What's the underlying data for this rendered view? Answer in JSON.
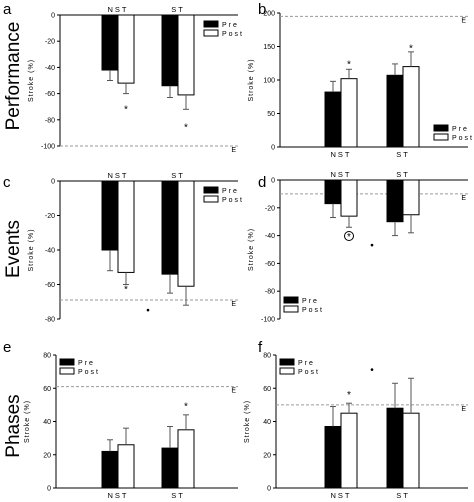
{
  "row_labels": [
    "Performance",
    "Events",
    "Phases"
  ],
  "chart_data": [
    {
      "id": "a",
      "type": "bar",
      "letter": "a",
      "ylabel": "Stroke (%)",
      "ylim": [
        -100,
        0
      ],
      "yticks": [
        0,
        -20,
        -40,
        -60,
        -80,
        -100
      ],
      "yticklabels": [
        "0",
        "-20",
        "-40",
        "-60",
        "-80",
        "-100"
      ],
      "categories": [
        "NST",
        "ST"
      ],
      "category_position": "top",
      "series": [
        {
          "name": "Pre",
          "color": "#000000",
          "values": [
            -42,
            -54
          ],
          "errors": [
            8,
            9
          ]
        },
        {
          "name": "Post",
          "color": "#ffffff",
          "values": [
            -52,
            -61
          ],
          "errors": [
            8,
            11
          ]
        }
      ],
      "reference": {
        "value": -100,
        "label": "E"
      },
      "legend": "top-right",
      "annotations": [
        {
          "text": "*",
          "category": 0,
          "series": 1,
          "value": -72
        },
        {
          "text": "*",
          "category": 1,
          "series": 1,
          "value": -86
        }
      ]
    },
    {
      "id": "b",
      "type": "bar",
      "letter": "b",
      "ylabel": "Stroke (%)",
      "ylim": [
        0,
        200
      ],
      "yticks": [
        0,
        50,
        100,
        150,
        200
      ],
      "yticklabels": [
        "0",
        "50",
        "100",
        "150",
        "200"
      ],
      "categories": [
        "NST",
        "ST"
      ],
      "category_position": "bottom",
      "series": [
        {
          "name": "Pre",
          "color": "#000000",
          "values": [
            82,
            107
          ],
          "errors": [
            16,
            17
          ]
        },
        {
          "name": "Post",
          "color": "#ffffff",
          "values": [
            102,
            120
          ],
          "errors": [
            14,
            22
          ]
        }
      ],
      "reference": {
        "value": 195,
        "label": "E"
      },
      "legend": "bottom-right",
      "annotations": [
        {
          "text": "*",
          "category": 0,
          "series": 1,
          "value": 123
        },
        {
          "text": "*",
          "category": 1,
          "series": 1,
          "value": 147
        }
      ]
    },
    {
      "id": "c",
      "type": "bar",
      "letter": "c",
      "ylabel": "Stroke (%)",
      "ylim": [
        -80,
        0
      ],
      "yticks": [
        0,
        -20,
        -40,
        -60,
        -80
      ],
      "yticklabels": [
        "0",
        "-20",
        "-40",
        "-60",
        "-80"
      ],
      "categories": [
        "NST",
        "ST"
      ],
      "category_position": "top",
      "series": [
        {
          "name": "Pre",
          "color": "#000000",
          "values": [
            -40,
            -54
          ],
          "errors": [
            12,
            11
          ]
        },
        {
          "name": "Post",
          "color": "#ffffff",
          "values": [
            -53,
            -61
          ],
          "errors": [
            7,
            11
          ]
        }
      ],
      "reference": {
        "value": -69,
        "label": "E"
      },
      "legend": "top-right",
      "annotations": [
        {
          "text": "*",
          "category": 0,
          "series": 1,
          "value": -63
        },
        {
          "text": "•",
          "between": true,
          "value": -75
        }
      ]
    },
    {
      "id": "d",
      "type": "bar",
      "letter": "d",
      "ylabel": "Stroke (%)",
      "ylim": [
        -100,
        0
      ],
      "yticks": [
        0,
        -20,
        -40,
        -60,
        -80,
        -100
      ],
      "yticklabels": [
        "0",
        "-20",
        "-40",
        "-60",
        "-80",
        "-100"
      ],
      "categories": [
        "NST",
        "ST"
      ],
      "category_position": "top",
      "series": [
        {
          "name": "Pre",
          "color": "#000000",
          "values": [
            -17,
            -30
          ],
          "errors": [
            10,
            10
          ]
        },
        {
          "name": "Post",
          "color": "#ffffff",
          "values": [
            -26,
            -25
          ],
          "errors": [
            8,
            13
          ]
        }
      ],
      "reference": {
        "value": -10,
        "label": "E"
      },
      "legend": "bottom-left",
      "annotations": [
        {
          "text": "*",
          "category": 0,
          "series": 1,
          "value": -41,
          "circled": true
        },
        {
          "text": "•",
          "between": true,
          "value": -47
        }
      ]
    },
    {
      "id": "e",
      "type": "bar",
      "letter": "e",
      "ylabel": "Stroke (%)",
      "ylim": [
        0,
        80
      ],
      "yticks": [
        0,
        20,
        40,
        60,
        80
      ],
      "yticklabels": [
        "0",
        "20",
        "40",
        "60",
        "80"
      ],
      "categories": [
        "NST",
        "ST"
      ],
      "category_position": "bottom",
      "series": [
        {
          "name": "Pre",
          "color": "#000000",
          "values": [
            22,
            24
          ],
          "errors": [
            7,
            13
          ]
        },
        {
          "name": "Post",
          "color": "#ffffff",
          "values": [
            26,
            35
          ],
          "errors": [
            10,
            9
          ]
        }
      ],
      "reference": {
        "value": 61,
        "label": "E"
      },
      "legend": "top-left",
      "annotations": [
        {
          "text": "*",
          "category": 1,
          "series": 1,
          "value": 49
        }
      ]
    },
    {
      "id": "f",
      "type": "bar",
      "letter": "f",
      "ylabel": "Stroke (%)",
      "ylim": [
        0,
        80
      ],
      "yticks": [
        0,
        20,
        40,
        60,
        80
      ],
      "yticklabels": [
        "0",
        "20",
        "40",
        "60",
        "80"
      ],
      "categories": [
        "NST",
        "ST"
      ],
      "category_position": "bottom",
      "series": [
        {
          "name": "Pre",
          "color": "#000000",
          "values": [
            37,
            48
          ],
          "errors": [
            12,
            15
          ]
        },
        {
          "name": "Post",
          "color": "#ffffff",
          "values": [
            45,
            45
          ],
          "errors": [
            6,
            21
          ]
        }
      ],
      "reference": {
        "value": 50,
        "label": "E"
      },
      "legend": "top-left",
      "annotations": [
        {
          "text": "*",
          "category": 0,
          "series": 1,
          "value": 56
        },
        {
          "text": "•",
          "between": true,
          "value": 71
        }
      ]
    }
  ]
}
